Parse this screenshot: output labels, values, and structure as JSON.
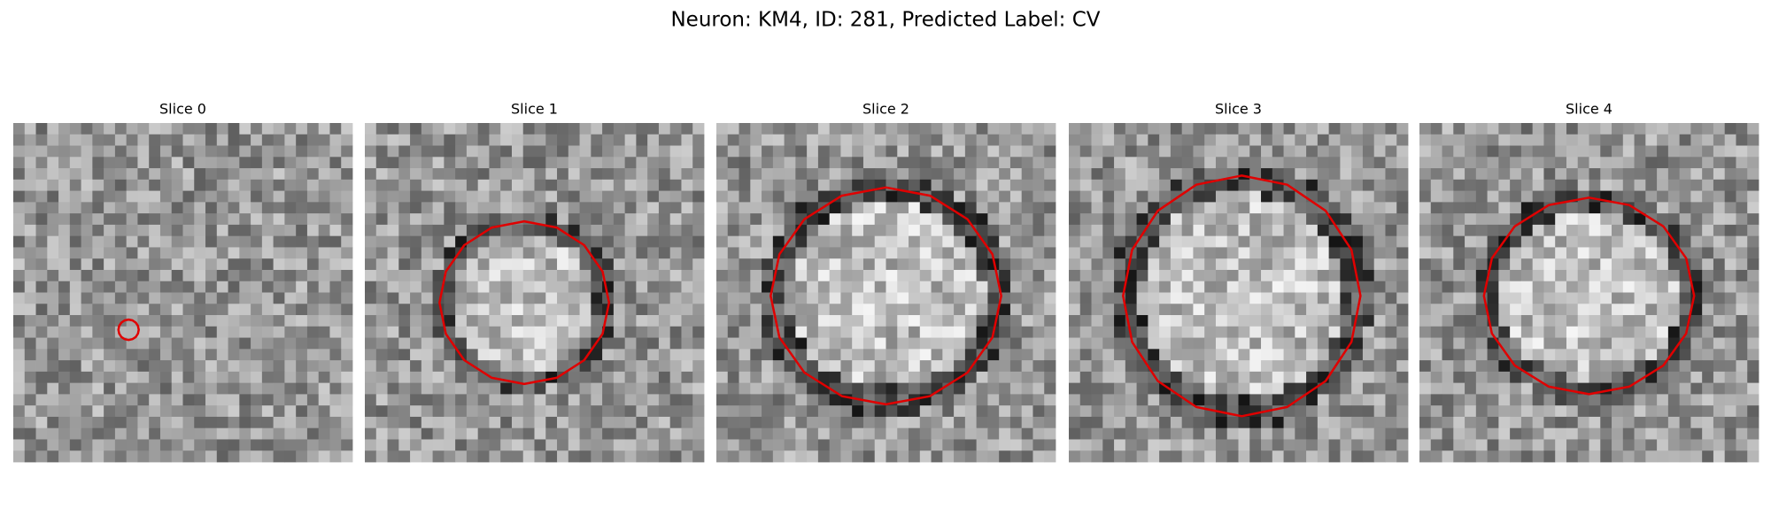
{
  "figure": {
    "title": "Neuron: KM4, ID: 281, Predicted Label: CV",
    "panels": [
      {
        "title": "Slice 0"
      },
      {
        "title": "Slice 1"
      },
      {
        "title": "Slice 2"
      },
      {
        "title": "Slice 3"
      },
      {
        "title": "Slice 4"
      }
    ]
  }
}
